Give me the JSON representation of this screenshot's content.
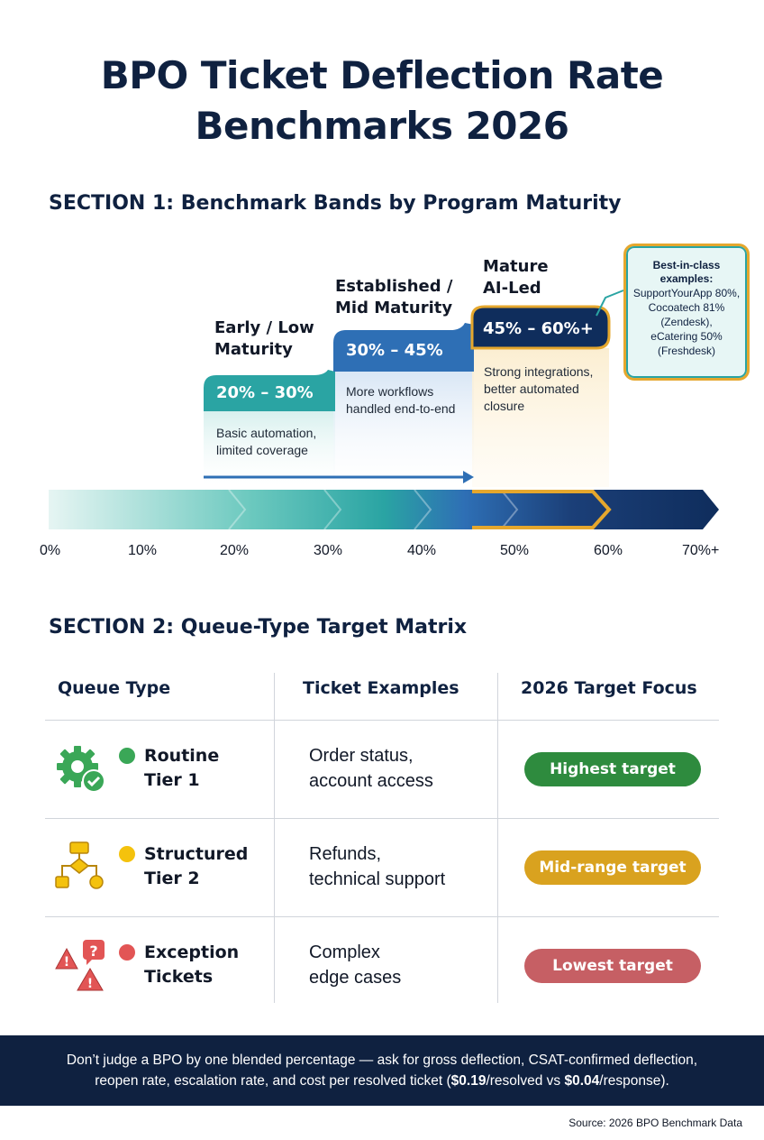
{
  "title": {
    "line1": "BPO Ticket Deflection Rate",
    "line2": "Benchmarks 2026"
  },
  "section1": {
    "heading": "SECTION 1: Benchmark Bands by Program Maturity",
    "bands": [
      {
        "label_line1": "Early / Low",
        "label_line2": "Maturity",
        "range": "20% – 30%",
        "desc_line1": "Basic automation,",
        "desc_line2": "limited coverage",
        "min": 20,
        "max": 30,
        "color": "#2aa4a3"
      },
      {
        "label_line1": "Established /",
        "label_line2": "Mid Maturity",
        "range": "30% – 45%",
        "desc_line1": "More workflows",
        "desc_line2": "handled end-to-end",
        "min": 30,
        "max": 45,
        "color": "#2e6fb5"
      },
      {
        "label_line1": "Mature",
        "label_line2": "AI-Led",
        "range": "45% – 60%+",
        "desc_line1": "Strong integrations,",
        "desc_line2": "better automated",
        "desc_line3": "closure",
        "min": 45,
        "max": 60,
        "color": "#0f2d5c",
        "accent": "#e5a72d"
      }
    ],
    "callout": {
      "head_line1": "Best-in-class",
      "head_line2": "examples:",
      "body_line1": "SupportYourApp 80%,",
      "body_line2": "Cocoatech 81%",
      "body_line3": "(Zendesk),",
      "body_line4": "eCatering 50%",
      "body_line5": "(Freshdesk)"
    },
    "axis_ticks": [
      "0%",
      "10%",
      "20%",
      "30%",
      "40%",
      "50%",
      "60%",
      "70%+"
    ]
  },
  "section2": {
    "heading": "SECTION 2: Queue-Type Target Matrix",
    "columns": [
      "Queue Type",
      "Ticket Examples",
      "2026 Target Focus"
    ],
    "rows": [
      {
        "icon": "gear-check-icon",
        "dot_color": "#3aa757",
        "name_line1": "Routine",
        "name_line2": "Tier 1",
        "ex_line1": "Order status,",
        "ex_line2": "account access",
        "target": "Highest target",
        "pill_color": "#2e8b3e"
      },
      {
        "icon": "flowchart-icon",
        "dot_color": "#f4c20d",
        "name_line1": "Structured",
        "name_line2": "Tier 2",
        "ex_line1": "Refunds,",
        "ex_line2": "technical support",
        "target": "Mid-range target",
        "pill_color": "#d9a21f"
      },
      {
        "icon": "warning-question-icon",
        "dot_color": "#e25555",
        "name_line1": "Exception",
        "name_line2": "Tickets",
        "ex_line1": "Complex",
        "ex_line2": "edge cases",
        "target": "Lowest target",
        "pill_color": "#c65f64"
      }
    ]
  },
  "footer": {
    "line1": "Don’t judge a BPO by one blended percentage — ask for gross deflection, CSAT-confirmed deflection,",
    "line2_pre": "reopen rate, escalation rate, and cost per resolved ticket (",
    "line2_bold1": "$0.19",
    "line2_mid": "/resolved vs ",
    "line2_bold2": "$0.04",
    "line2_post": "/response)."
  },
  "source": "Source: 2026 BPO Benchmark Data"
}
